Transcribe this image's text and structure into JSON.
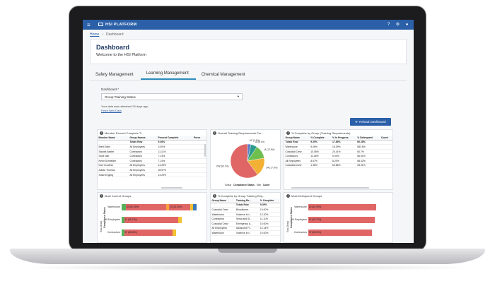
{
  "app": {
    "name": "HSI PLATFORM"
  },
  "breadcrumb": {
    "home": "Home",
    "current": "Dashboard"
  },
  "page": {
    "title": "Dashboard",
    "subtitle": "Welcome to the HSI Platform"
  },
  "tabs": [
    {
      "label": "Safety Management"
    },
    {
      "label": "Learning Management"
    },
    {
      "label": "Chemical Management"
    }
  ],
  "filter": {
    "label": "Dashboard *",
    "selected": "Group Training Status",
    "refresh_note": "Your data was refreshed 24 days ago.",
    "refresh_link": "Fetch New Data",
    "reload_label": "Reload Dashboard"
  },
  "panel_member": {
    "title": "Member Percent Complete Tr",
    "columns": [
      "Member Name",
      "Group Names",
      "Percent Complete",
      "Perce"
    ],
    "totals": [
      "",
      "Totals Row",
      "9.46%",
      ""
    ],
    "rows": [
      [
        "Brett Dillon",
        "All Employees",
        "0.00%",
        ""
      ],
      [
        "Sandra Baxter",
        "Contractors",
        "11.11%",
        ""
      ],
      [
        "Scott Nair",
        "Contractors",
        "7.14%",
        ""
      ],
      [
        "Kevin Schneider",
        "Contractors",
        "7.14%",
        ""
      ],
      [
        "Dan Crowther",
        "All Employees",
        "14.29%",
        ""
      ],
      [
        "Adrian Thomas",
        "All Employees",
        "28.57%",
        ""
      ],
      [
        "Susie Evgiing",
        "All Employees",
        "14.29%",
        ""
      ]
    ]
  },
  "panel_pie": {
    "title": "Overall Training Requirements Per...",
    "legend_title": "Group",
    "legend_value": "Compliance Status",
    "legend_extra": "Stat",
    "legend_count": "Count",
    "slices": [
      {
        "label": "UF (3.3%)",
        "value": 3.3,
        "color": "#5b7fc7"
      },
      {
        "label": "IA (6.1%)",
        "value": 6.1,
        "color": "#2d9b8e"
      },
      {
        "label": "IA (12.9%)",
        "value": 12.9,
        "color": "#6fbf4f"
      },
      {
        "label": "OA (17.6%)",
        "value": 17.6,
        "color": "#f2b134"
      },
      {
        "label": "OW (60.1%)",
        "value": 60.1,
        "color": "#e06666"
      }
    ]
  },
  "panel_group_complete": {
    "title": "% Complete by Group (Training Requirements)",
    "columns": [
      "Group Name",
      "% Complete",
      "% In Progress",
      "% Delinquent",
      "Count"
    ],
    "totals": [
      "Totals Row",
      "9.39%",
      "17.85%",
      "60.28%",
      ""
    ],
    "rows": [
      [
        "Warehouse",
        "9.06%",
        "16.39%",
        "583.8%",
        ""
      ],
      [
        "Custodial Crew",
        "10.05%",
        "20.41%",
        "60.7%",
        ""
      ],
      [
        "Contractors",
        "11.46%",
        "0.00%",
        "66.51%",
        ""
      ],
      [
        "All Employees",
        "8.57%",
        "8.20%",
        "68.42%",
        ""
      ],
      [
        "Custodial Crew",
        "1.38%",
        "63.86%",
        "28.91%",
        ""
      ]
    ]
  },
  "panel_current": {
    "title": "Most Current Groups",
    "axis_label": "Sub-Group",
    "axis_label2": "Compliance Status",
    "groups": [
      {
        "label": "Warehouse",
        "segments": [
          {
            "text": "",
            "value": 0.05,
            "color": "#57b05a"
          },
          {
            "text": "53 (60.39%)",
            "value": 0.48,
            "color": "#e06666"
          },
          {
            "text": "",
            "value": 0.04,
            "color": "#f7a23b"
          },
          {
            "text": "20 (22.93%)",
            "value": 0.25,
            "color": "#e06666"
          },
          {
            "text": "",
            "value": 0.04,
            "color": "#f2c232"
          },
          {
            "text": "",
            "value": 0.04,
            "color": "#3a78b8"
          }
        ]
      },
      {
        "label": "All Employees",
        "segments": [
          {
            "text": "",
            "value": 0.03,
            "color": "#57b05a"
          },
          {
            "text": "41 (36.13%)",
            "value": 0.65,
            "color": "#e06666"
          },
          {
            "text": "",
            "value": 0.04,
            "color": "#f2c232"
          }
        ]
      },
      {
        "label": "Contractors",
        "segments": [
          {
            "text": "",
            "value": 0.03,
            "color": "#57b05a"
          },
          {
            "text": "57 (68.18%)",
            "value": 0.58,
            "color": "#e06666"
          },
          {
            "text": "",
            "value": 0.04,
            "color": "#f2c232"
          }
        ]
      }
    ]
  },
  "panel_group_training": {
    "title": "% Complete by Group Training Req...",
    "columns": [
      "Group Name",
      "Training Re...",
      "% Complete"
    ],
    "totals": [
      "",
      "Totals Row",
      "9.39%"
    ],
    "rows": [
      [
        "Custodial Crew",
        "Bloodborne...",
        "10.00%"
      ],
      [
        "Warehouse",
        "Violence In t...",
        "12.20%"
      ],
      [
        "Contractors",
        "Serial and Sl...",
        "11.11%"
      ],
      [
        "Custodial Crew",
        "Emergency a...",
        "10.00%"
      ],
      [
        "All Employees",
        "Advanced Fl...",
        "12.14%"
      ],
      [
        "Warehouse",
        "Violence In t...",
        "10.00%"
      ]
    ]
  },
  "panel_delinquent": {
    "title": "Most Delinquent Groups",
    "axis_label": "Sub-Group",
    "axis_label2": "Compliance Status",
    "groups": [
      {
        "label": "Warehouse",
        "text": "62 (60.39%)",
        "value": 0.81,
        "color": "#e06666"
      },
      {
        "label": "All Employees",
        "text": "61 (60.70%)",
        "value": 0.8,
        "color": "#e06666"
      },
      {
        "label": "Contractors",
        "text": "57 (68.18%)",
        "value": 0.76,
        "color": "#e06666"
      }
    ]
  }
}
